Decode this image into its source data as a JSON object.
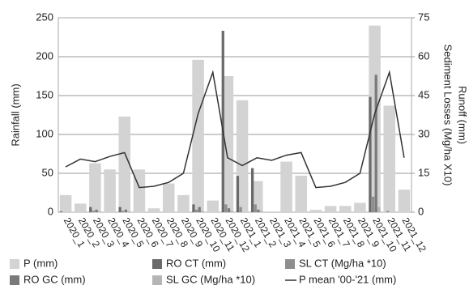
{
  "chart_data": {
    "type": "bar",
    "y_label": "Rainfall (mm)",
    "y2_label": "Sediment Losses (Mg/ha X10)",
    "y2_label_2": "Runoff (mm)",
    "categories": [
      "2020_1",
      "2020_2",
      "2020_3",
      "2020_4",
      "2020_5",
      "2020_6",
      "2020_7",
      "2020_8",
      "2020_9",
      "2020_10",
      "2020_11",
      "2020_12",
      "2021_1",
      "2021_2",
      "2021_3",
      "2021_4",
      "2021_5",
      "2021_6",
      "2021_7",
      "2021_8",
      "2021_9",
      "2021_10",
      "2021_11",
      "2021_12"
    ],
    "series": [
      {
        "name": "P (mm)",
        "color": "#d3d3d3",
        "kind": "bar",
        "axis": "y",
        "values": [
          22,
          11,
          63,
          55,
          123,
          55,
          5,
          37,
          22,
          196,
          15,
          175,
          144,
          40,
          0,
          65,
          47,
          3,
          8,
          8,
          12,
          240,
          137,
          29
        ]
      },
      {
        "name": "RO CT (mm)",
        "color": "#6a6a6a",
        "kind": "bar",
        "axis": "y2",
        "values": [
          0.3,
          0,
          2,
          0,
          2,
          0,
          0,
          0,
          0,
          3,
          0,
          70,
          14,
          17,
          0,
          0,
          0,
          0,
          0,
          0,
          0,
          44.5,
          0,
          0
        ]
      },
      {
        "name": "SL CT (Mg/ha *10)",
        "color": "#8e8e8e",
        "kind": "bar",
        "axis": "y2",
        "values": [
          0,
          0,
          0.5,
          0,
          0.5,
          0,
          0,
          0,
          0,
          1,
          0,
          3,
          2,
          3,
          0,
          0,
          0,
          0,
          0,
          0,
          0,
          6,
          0.5,
          0
        ]
      },
      {
        "name": "RO GC (mm)",
        "color": "#7a7a7a",
        "kind": "bar",
        "axis": "y2",
        "values": [
          0,
          0,
          1,
          0,
          1,
          0,
          0,
          0,
          0,
          2,
          0,
          1.5,
          0,
          1,
          0,
          0,
          0,
          0,
          0,
          0,
          0,
          53,
          0,
          0
        ]
      },
      {
        "name": "SL GC (Mg/ha *10)",
        "color": "#b5b5b5",
        "kind": "bar",
        "axis": "y2",
        "values": [
          0,
          0,
          0.3,
          0,
          0.3,
          0,
          0,
          0,
          0,
          0.5,
          0,
          0.5,
          0,
          0.5,
          0,
          0,
          0,
          0,
          0,
          0,
          0,
          2,
          0,
          0
        ]
      },
      {
        "name": "P mean '00-'21 (mm)",
        "color": "#333333",
        "kind": "line",
        "axis": "y2",
        "values": [
          17.5,
          20.5,
          19.5,
          21.5,
          23,
          9.5,
          10,
          11.5,
          15,
          38,
          54,
          21,
          18,
          21,
          20,
          22,
          23,
          9.5,
          10,
          11.5,
          15,
          38,
          54,
          21
        ]
      }
    ],
    "ylim": [
      0,
      250
    ],
    "yticks": [
      0,
      50,
      100,
      150,
      200,
      250
    ],
    "y2lim": [
      0,
      75
    ],
    "y2ticks": [
      0,
      15,
      30,
      45,
      60,
      75
    ],
    "grid": true
  }
}
